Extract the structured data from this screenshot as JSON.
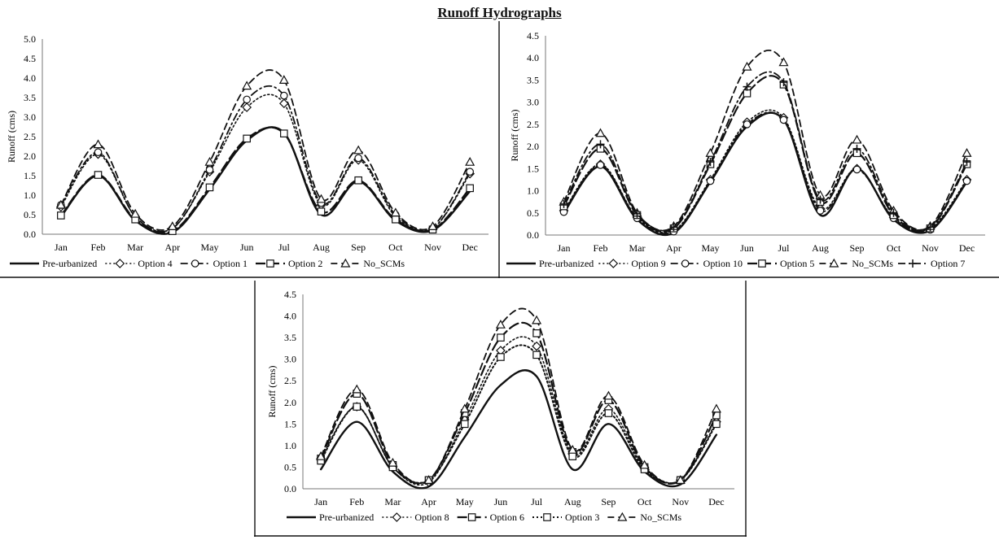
{
  "figure": {
    "title": "Runoff Hydrographs"
  },
  "chart_data": [
    {
      "type": "line",
      "title": "",
      "xlabel": "",
      "ylabel": "Runoff (cms)",
      "categories": [
        "Jan",
        "Feb",
        "Mar",
        "Apr",
        "May",
        "Jun",
        "Jul",
        "Aug",
        "Sep",
        "Oct",
        "Nov",
        "Dec"
      ],
      "ylim": [
        0,
        5.0
      ],
      "yticks": [
        "0.0",
        "0.5",
        "1.0",
        "1.5",
        "2.0",
        "2.5",
        "3.0",
        "3.5",
        "4.0",
        "4.5",
        "5.0"
      ],
      "grid": false,
      "legend": "bottom",
      "series": [
        {
          "name": "Pre-urbanized",
          "dash": "solid",
          "marker": "none",
          "width": 2.4,
          "values": [
            0.45,
            1.5,
            0.35,
            0.05,
            1.15,
            2.4,
            2.6,
            0.5,
            1.35,
            0.35,
            0.1,
            1.1
          ]
        },
        {
          "name": "Option 4",
          "dash": "dot",
          "marker": "diamond",
          "width": 1.6,
          "values": [
            0.7,
            2.05,
            0.45,
            0.15,
            1.6,
            3.25,
            3.35,
            0.75,
            1.9,
            0.45,
            0.15,
            1.55
          ]
        },
        {
          "name": "Option 1",
          "dash": "dashdot",
          "marker": "circle",
          "width": 1.8,
          "values": [
            0.75,
            2.1,
            0.45,
            0.15,
            1.65,
            3.45,
            3.55,
            0.8,
            1.95,
            0.5,
            0.15,
            1.6
          ]
        },
        {
          "name": "Option 2",
          "dash": "longdash",
          "marker": "square",
          "width": 2.2,
          "values": [
            0.48,
            1.52,
            0.38,
            0.08,
            1.2,
            2.45,
            2.58,
            0.58,
            1.38,
            0.38,
            0.12,
            1.18
          ]
        },
        {
          "name": "No_SCMs",
          "dash": "dash",
          "marker": "triangle",
          "width": 1.8,
          "values": [
            0.75,
            2.3,
            0.52,
            0.2,
            1.85,
            3.8,
            3.95,
            0.9,
            2.15,
            0.55,
            0.2,
            1.85
          ]
        }
      ]
    },
    {
      "type": "line",
      "title": "",
      "xlabel": "",
      "ylabel": "Runoff (cms)",
      "categories": [
        "Jan",
        "Feb",
        "Mar",
        "Apr",
        "May",
        "Jun",
        "Jul",
        "Aug",
        "Sep",
        "Oct",
        "Nov",
        "Dec"
      ],
      "ylim": [
        0,
        4.5
      ],
      "yticks": [
        "0.0",
        "0.5",
        "1.0",
        "1.5",
        "2.0",
        "2.5",
        "3.0",
        "3.5",
        "4.0",
        "4.5"
      ],
      "grid": false,
      "legend": "bottom",
      "series": [
        {
          "name": "Pre-urbanized",
          "dash": "solid",
          "marker": "none",
          "width": 2.4,
          "values": [
            0.5,
            1.55,
            0.35,
            0.05,
            1.2,
            2.45,
            2.6,
            0.45,
            1.5,
            0.35,
            0.1,
            1.2
          ]
        },
        {
          "name": "Option 9",
          "dash": "dot",
          "marker": "diamond",
          "width": 1.6,
          "values": [
            0.55,
            1.6,
            0.4,
            0.1,
            1.25,
            2.55,
            2.65,
            0.6,
            1.5,
            0.4,
            0.15,
            1.25
          ]
        },
        {
          "name": "Option 10",
          "dash": "dashdot",
          "marker": "circle",
          "width": 1.8,
          "values": [
            0.52,
            1.58,
            0.38,
            0.08,
            1.22,
            2.5,
            2.6,
            0.55,
            1.48,
            0.38,
            0.12,
            1.22
          ]
        },
        {
          "name": "Option 5",
          "dash": "longdash",
          "marker": "square",
          "width": 2.2,
          "values": [
            0.65,
            1.95,
            0.45,
            0.15,
            1.6,
            3.2,
            3.4,
            0.75,
            1.85,
            0.45,
            0.15,
            1.6
          ]
        },
        {
          "name": "No_SCMs",
          "dash": "dash",
          "marker": "triangle",
          "width": 1.8,
          "values": [
            0.75,
            2.3,
            0.5,
            0.2,
            1.85,
            3.8,
            3.9,
            0.9,
            2.15,
            0.55,
            0.2,
            1.85
          ]
        },
        {
          "name": "Option 7",
          "dash": "dashdot",
          "marker": "plus",
          "width": 1.8,
          "values": [
            0.7,
            2.05,
            0.48,
            0.18,
            1.65,
            3.35,
            3.45,
            0.8,
            1.95,
            0.5,
            0.18,
            1.65
          ]
        }
      ]
    },
    {
      "type": "line",
      "title": "",
      "xlabel": "",
      "ylabel": "Runoff (cms)",
      "categories": [
        "Jan",
        "Feb",
        "Mar",
        "Apr",
        "May",
        "Jun",
        "Jul",
        "Aug",
        "Sep",
        "Oct",
        "Nov",
        "Dec"
      ],
      "ylim": [
        0,
        4.5
      ],
      "yticks": [
        "0.0",
        "0.5",
        "1.0",
        "1.5",
        "2.0",
        "2.5",
        "3.0",
        "3.5",
        "4.0",
        "4.5"
      ],
      "grid": false,
      "legend": "bottom",
      "series": [
        {
          "name": "Pre-urbanized",
          "dash": "solid",
          "marker": "none",
          "width": 2.4,
          "values": [
            0.45,
            1.55,
            0.4,
            0.05,
            1.2,
            2.4,
            2.6,
            0.45,
            1.5,
            0.4,
            0.1,
            1.25
          ]
        },
        {
          "name": "Option 8",
          "dash": "dot",
          "marker": "diamond",
          "width": 1.6,
          "values": [
            0.7,
            1.9,
            0.5,
            0.15,
            1.6,
            3.2,
            3.3,
            0.8,
            1.85,
            0.5,
            0.2,
            1.55
          ]
        },
        {
          "name": "Option 6",
          "dash": "longdash",
          "marker": "square",
          "width": 2.2,
          "values": [
            0.7,
            2.2,
            0.55,
            0.2,
            1.75,
            3.5,
            3.6,
            0.85,
            2.05,
            0.5,
            0.2,
            1.7
          ]
        },
        {
          "name": "Option 3",
          "dash": "dot",
          "marker": "square",
          "width": 2.0,
          "values": [
            0.65,
            1.9,
            0.5,
            0.2,
            1.5,
            3.05,
            3.1,
            0.75,
            1.75,
            0.45,
            0.2,
            1.5
          ]
        },
        {
          "name": "No_SCMs",
          "dash": "dash",
          "marker": "triangle",
          "width": 1.8,
          "values": [
            0.75,
            2.3,
            0.6,
            0.2,
            1.85,
            3.8,
            3.9,
            0.9,
            2.15,
            0.55,
            0.2,
            1.85
          ]
        }
      ]
    }
  ]
}
